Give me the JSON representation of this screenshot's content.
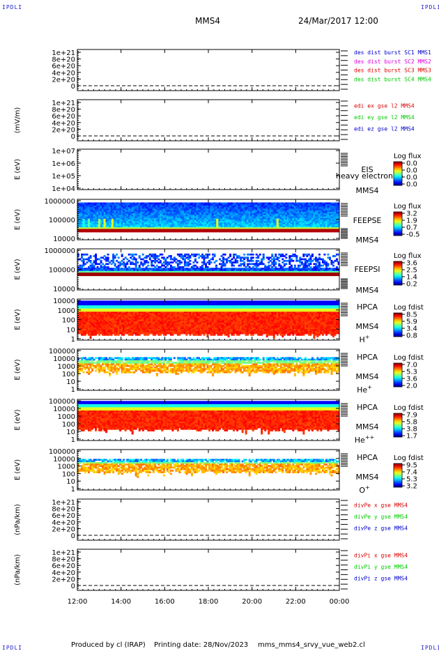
{
  "corner_tag": "IPDLI",
  "header": {
    "spacecraft": "MMS4",
    "datetime": "24/Mar/2017 12:00"
  },
  "footer": {
    "produced": "Produced by cl (IRAP)",
    "printing": "Printing date: 28/Nov/2023",
    "script": "mms_mms4_srvy_vue_web2.cl"
  },
  "chart_data": {
    "type": "heatmap",
    "x_ticks": [
      "12:00",
      "14:00",
      "16:00",
      "18:00",
      "20:00",
      "22:00",
      "00:00"
    ],
    "panels": [
      {
        "id": "fpi-dist",
        "kind": "line",
        "ylabel": "",
        "yticks": [
          "1e+21",
          "8e+20",
          "6e+20",
          "4e+20",
          "2e+20",
          "0"
        ],
        "legend": [
          {
            "text": "des dist burst SC1 MMS1",
            "color": "#0000cc"
          },
          {
            "text": "des dist burst SC2 MMS2",
            "color": "#dd00dd"
          },
          {
            "text": "des dist burst SC3 MMS3",
            "color": "#dd0000"
          },
          {
            "text": "des dist burst SC4 MMS4",
            "color": "#00cc00"
          }
        ]
      },
      {
        "id": "edi-e",
        "kind": "line",
        "ylabel": "(mV/m)",
        "yticks": [
          "1e+21",
          "8e+20",
          "6e+20",
          "4e+20",
          "2e+20",
          "0"
        ],
        "legend": [
          {
            "text": "edi ex gse l2 MMS4",
            "color": "#dd0000"
          },
          {
            "text": "edi ey gse l2 MMS4",
            "color": "#00cc00"
          },
          {
            "text": "edi ez gse l2 MMS4",
            "color": "#0000cc"
          }
        ]
      },
      {
        "id": "eis",
        "kind": "spec",
        "ylabel": "E (eV)",
        "yticks": [
          "1e+07",
          "1e+06",
          "1e+05",
          "1e+04"
        ],
        "labels": [
          "EIS",
          "MMS4"
        ],
        "overlay": "heavy electron to",
        "cbar_title": "Log flux",
        "cbar_ticks": [
          "0.0",
          "0.0",
          "0.0",
          "0.0"
        ]
      },
      {
        "id": "feepse",
        "kind": "spec",
        "ylabel": "E (eV)",
        "yticks": [
          "1000000",
          "100000",
          "10000"
        ],
        "labels": [
          "FEEPSE",
          "MMS4"
        ],
        "cbar_title": "Log flux",
        "cbar_ticks": [
          "3.2",
          "1.9",
          "0.7",
          "-0.5"
        ]
      },
      {
        "id": "feepsi",
        "kind": "spec",
        "ylabel": "E (eV)",
        "yticks": [
          "1000000",
          "100000",
          "10000"
        ],
        "labels": [
          "FEEPSI",
          "MMS4"
        ],
        "cbar_title": "Log flux",
        "cbar_ticks": [
          "3.6",
          "2.5",
          "1.4",
          "0.2"
        ]
      },
      {
        "id": "hpca-h",
        "kind": "spec",
        "ylabel": "E (eV)",
        "yticks": [
          "10000",
          "1000",
          "100",
          "10",
          "1"
        ],
        "labels": [
          "HPCA",
          "MMS4"
        ],
        "species": "H",
        "species_sup": "+",
        "cbar_title": "Log fdist",
        "cbar_ticks": [
          "8.5",
          "5.9",
          "3.4",
          "0.8"
        ]
      },
      {
        "id": "hpca-he",
        "kind": "spec",
        "ylabel": "E (eV)",
        "yticks": [
          "100000",
          "10000",
          "1000",
          "100",
          "10",
          "1"
        ],
        "labels": [
          "HPCA",
          "MMS4"
        ],
        "species": "He",
        "species_sup": "+",
        "cbar_title": "Log fdist",
        "cbar_ticks": [
          "7.0",
          "5.3",
          "3.6",
          "2.0"
        ]
      },
      {
        "id": "hpca-hepp",
        "kind": "spec",
        "ylabel": "E (eV)",
        "yticks": [
          "100000",
          "10000",
          "1000",
          "100",
          "10",
          "1"
        ],
        "labels": [
          "HPCA",
          "MMS4"
        ],
        "species": "He",
        "species_sup": "++",
        "cbar_title": "Log fdist",
        "cbar_ticks": [
          "7.9",
          "5.8",
          "3.8",
          "1.7"
        ]
      },
      {
        "id": "hpca-o",
        "kind": "spec",
        "ylabel": "E (eV)",
        "yticks": [
          "100000",
          "10000",
          "1000",
          "100",
          "10",
          "1"
        ],
        "labels": [
          "HPCA",
          "MMS4"
        ],
        "species": "O",
        "species_sup": "+",
        "cbar_title": "Log fdist",
        "cbar_ticks": [
          "9.5",
          "7.4",
          "5.3",
          "3.2"
        ]
      },
      {
        "id": "divpe",
        "kind": "line",
        "ylabel": "(nPa/km)",
        "yticks": [
          "1e+21",
          "8e+20",
          "6e+20",
          "4e+20",
          "2e+20",
          "0"
        ],
        "legend": [
          {
            "text": "divPe x gse MMS4",
            "color": "#dd0000"
          },
          {
            "text": "divPe y gse MMS4",
            "color": "#00cc00"
          },
          {
            "text": "divPe z gse MMS4",
            "color": "#0000cc"
          }
        ]
      },
      {
        "id": "divpi",
        "kind": "line",
        "ylabel": "(nPa/km)",
        "yticks": [
          "1e+21",
          "8e+20",
          "6e+20",
          "4e+20",
          "2e+20",
          "0"
        ],
        "legend": [
          {
            "text": "divPi x gse MMS4",
            "color": "#dd0000"
          },
          {
            "text": "divPi y gse MMS4",
            "color": "#00cc00"
          },
          {
            "text": "divPi z gse MMS4",
            "color": "#0000cc"
          }
        ]
      }
    ]
  }
}
